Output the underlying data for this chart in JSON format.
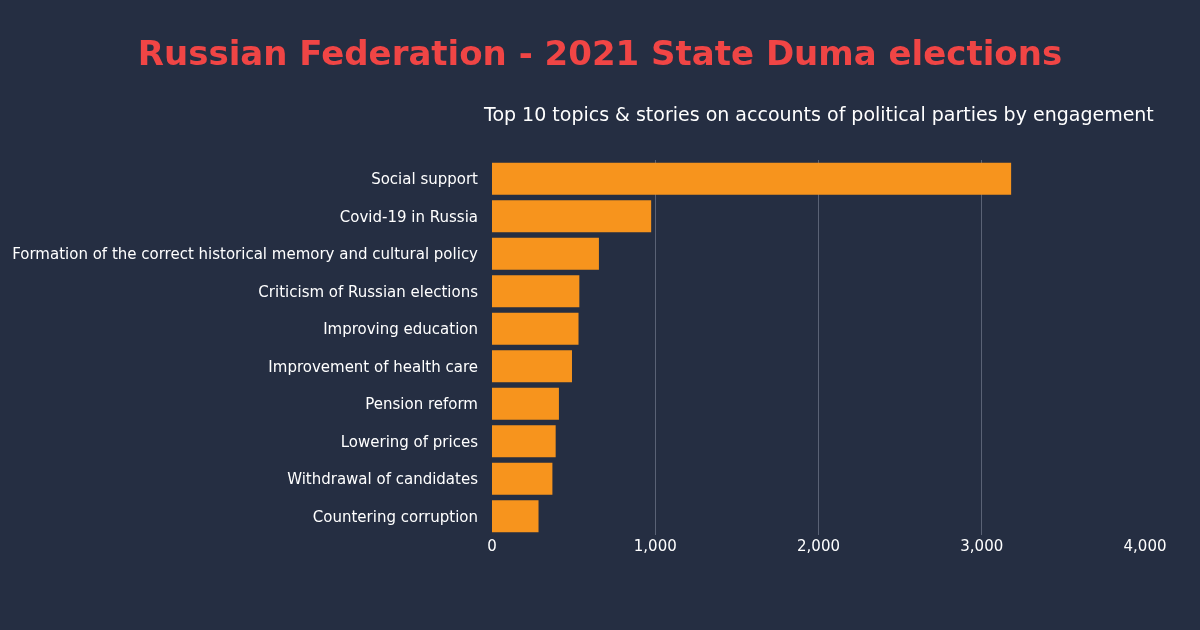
{
  "chart_data": {
    "type": "bar",
    "orientation": "horizontal",
    "title": "Russian Federation - 2021 State Duma elections",
    "subtitle": "Top 10 topics & stories on accounts of political parties by engagement",
    "categories": [
      "Social support",
      "Covid-19 in Russia",
      "Formation of the correct historical memory and cultural policy",
      "Criticism of Russian elections",
      "Improving education",
      "Improvement of health care",
      "Pension reform",
      "Lowering of prices",
      "Withdrawal of candidates",
      "Countering corruption"
    ],
    "values": [
      3180,
      975,
      655,
      535,
      530,
      490,
      410,
      390,
      370,
      285
    ],
    "color": "#f7941d",
    "xlim": [
      0,
      4000
    ],
    "xticks": [
      0,
      {
        "value": 1000,
        "label": "1,000"
      },
      {
        "value": 2000,
        "label": "2,000"
      },
      {
        "value": 3000,
        "label": "3,000"
      },
      {
        "value": 4000,
        "label": "4,000"
      }
    ],
    "grid": "x",
    "legend": false
  }
}
